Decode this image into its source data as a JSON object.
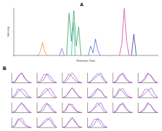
{
  "chart_data": [
    {
      "type": "line",
      "title": "A",
      "x_label": "Retention Time",
      "y_label": "Intensity",
      "xlim": [
        0,
        60
      ],
      "ylim": [
        0,
        1
      ],
      "xticks": [
        0,
        10,
        20,
        30,
        40,
        50,
        60
      ],
      "yticks": [
        0,
        0.5,
        1
      ],
      "tick_labels": false,
      "series": [
        {
          "color": "#f28a30",
          "x": [
            10,
            11,
            12,
            13,
            14
          ],
          "values": [
            0,
            0.08,
            0.28,
            0.06,
            0
          ]
        },
        {
          "color": "#9b59d0",
          "x": [
            19,
            20,
            21
          ],
          "values": [
            0,
            0.15,
            0
          ]
        },
        {
          "color": "#2ca05a",
          "x": [
            22,
            23,
            24,
            25,
            26,
            27,
            28
          ],
          "values": [
            0,
            0.9,
            0.3,
            0.95,
            0.2,
            0.6,
            0
          ]
        },
        {
          "color": "#3cb8b0",
          "x": [
            24,
            24.8,
            25.6
          ],
          "values": [
            0,
            0.7,
            0
          ]
        },
        {
          "color": "#4a6fd6",
          "x": [
            31,
            32,
            33,
            34,
            35,
            36
          ],
          "values": [
            0,
            0.2,
            0.05,
            0.35,
            0.1,
            0
          ]
        },
        {
          "color": "#d63aa8",
          "x": [
            44,
            45,
            46,
            47,
            48
          ],
          "values": [
            0,
            0.25,
            1,
            0.3,
            0
          ]
        },
        {
          "color": "#2a3a8c",
          "x": [
            49,
            50,
            51
          ],
          "values": [
            0,
            0.45,
            0
          ]
        }
      ]
    },
    {
      "type": "line",
      "title": "B",
      "x": [
        0,
        1,
        2,
        3,
        4,
        5,
        6
      ],
      "xlim": [
        0,
        6
      ],
      "ylim": [
        0,
        1
      ],
      "series": [
        {
          "color": "#4a5bd6",
          "values": [
            0,
            0.1,
            0.6,
            1,
            0.5,
            0.1,
            0
          ]
        },
        {
          "color": "#d63aa8",
          "values": [
            0,
            0.15,
            0.7,
            0.95,
            0.4,
            0.08,
            0
          ]
        }
      ]
    },
    {
      "type": "line",
      "x": [
        0,
        1,
        2,
        3,
        4,
        5,
        6
      ],
      "xlim": [
        0,
        6
      ],
      "ylim": [
        0,
        1
      ],
      "series": [
        {
          "color": "#4a5bd6",
          "values": [
            0,
            0.05,
            0.3,
            0.9,
            0.7,
            0.2,
            0
          ]
        },
        {
          "color": "#d63aa8",
          "values": [
            0,
            0.2,
            0.8,
            0.85,
            0.3,
            0.05,
            0
          ]
        }
      ]
    },
    {
      "type": "line",
      "x": [
        0,
        1,
        2,
        3,
        4,
        5,
        6
      ],
      "xlim": [
        0,
        6
      ],
      "ylim": [
        0,
        1
      ],
      "series": [
        {
          "color": "#4a5bd6",
          "values": [
            0,
            0.3,
            0.9,
            0.6,
            0.2,
            0.05,
            0
          ]
        },
        {
          "color": "#d63aa8",
          "values": [
            0,
            0.1,
            0.5,
            1,
            0.6,
            0.1,
            0
          ]
        }
      ]
    },
    {
      "type": "line",
      "x": [
        0,
        1,
        2,
        3,
        4,
        5,
        6
      ],
      "xlim": [
        0,
        6
      ],
      "ylim": [
        0,
        1
      ],
      "series": [
        {
          "color": "#4a5bd6",
          "values": [
            0,
            0.1,
            0.4,
            0.7,
            1,
            0.4,
            0
          ]
        },
        {
          "color": "#d63aa8",
          "values": [
            0,
            0.15,
            0.6,
            0.9,
            0.7,
            0.2,
            0
          ]
        }
      ]
    },
    {
      "type": "line",
      "x": [
        0,
        1,
        2,
        3,
        4,
        5,
        6
      ],
      "xlim": [
        0,
        6
      ],
      "ylim": [
        0,
        1
      ],
      "series": [
        {
          "color": "#4a5bd6",
          "values": [
            0,
            0.1,
            0.6,
            1,
            0.5,
            0.1,
            0
          ]
        },
        {
          "color": "#d63aa8",
          "values": [
            0,
            0.2,
            0.8,
            0.85,
            0.3,
            0.05,
            0
          ]
        }
      ]
    },
    {
      "type": "line",
      "x": [
        0,
        1,
        2,
        3,
        4,
        5,
        6
      ],
      "xlim": [
        0,
        6
      ],
      "ylim": [
        0,
        1
      ],
      "series": [
        {
          "color": "#4a5bd6",
          "values": [
            0,
            0.05,
            0.3,
            0.9,
            0.7,
            0.2,
            0
          ]
        },
        {
          "color": "#d63aa8",
          "values": [
            0,
            0.1,
            0.5,
            1,
            0.6,
            0.1,
            0
          ]
        }
      ]
    },
    {
      "type": "line",
      "x": [
        0,
        1,
        2,
        3,
        4,
        5,
        6
      ],
      "xlim": [
        0,
        6
      ],
      "ylim": [
        0,
        1
      ],
      "series": [
        {
          "color": "#4a5bd6",
          "values": [
            0,
            0.3,
            0.9,
            0.6,
            0.2,
            0.05,
            0
          ]
        },
        {
          "color": "#d63aa8",
          "values": [
            0,
            0.15,
            0.6,
            0.9,
            0.7,
            0.2,
            0
          ]
        }
      ]
    },
    {
      "type": "line",
      "x": [
        0,
        1,
        2,
        3,
        4,
        5,
        6
      ],
      "xlim": [
        0,
        6
      ],
      "ylim": [
        0,
        1
      ],
      "series": [
        {
          "color": "#4a5bd6",
          "values": [
            0,
            0.1,
            0.4,
            0.7,
            1,
            0.4,
            0
          ]
        },
        {
          "color": "#d63aa8",
          "values": [
            0,
            0.15,
            0.7,
            0.95,
            0.4,
            0.08,
            0
          ]
        }
      ]
    },
    {
      "type": "line",
      "x": [
        0,
        1,
        2,
        3,
        4,
        5,
        6
      ],
      "xlim": [
        0,
        6
      ],
      "ylim": [
        0,
        1
      ],
      "series": [
        {
          "color": "#4a5bd6",
          "values": [
            0,
            0.1,
            0.6,
            1,
            0.5,
            0.1,
            0
          ]
        },
        {
          "color": "#d63aa8",
          "values": [
            0,
            0.1,
            0.5,
            1,
            0.6,
            0.1,
            0
          ]
        }
      ]
    },
    {
      "type": "line",
      "x": [
        0,
        1,
        2,
        3,
        4,
        5,
        6
      ],
      "xlim": [
        0,
        6
      ],
      "ylim": [
        0,
        1
      ],
      "series": [
        {
          "color": "#4a5bd6",
          "values": [
            0,
            0.05,
            0.3,
            0.9,
            0.7,
            0.2,
            0
          ]
        },
        {
          "color": "#d63aa8",
          "values": [
            0,
            0.15,
            0.6,
            0.9,
            0.7,
            0.2,
            0
          ]
        }
      ]
    },
    {
      "type": "line",
      "x": [
        0,
        1,
        2,
        3,
        4,
        5,
        6
      ],
      "xlim": [
        0,
        6
      ],
      "ylim": [
        0,
        1
      ],
      "series": [
        {
          "color": "#4a5bd6",
          "values": [
            0,
            0.3,
            0.9,
            0.6,
            0.2,
            0.05,
            0
          ]
        },
        {
          "color": "#d63aa8",
          "values": [
            0,
            0.15,
            0.7,
            0.95,
            0.4,
            0.08,
            0
          ]
        }
      ]
    },
    {
      "type": "line",
      "x": [
        0,
        1,
        2,
        3,
        4,
        5,
        6
      ],
      "xlim": [
        0,
        6
      ],
      "ylim": [
        0,
        1
      ],
      "series": [
        {
          "color": "#4a5bd6",
          "values": [
            0,
            0.1,
            0.4,
            0.7,
            1,
            0.4,
            0
          ]
        },
        {
          "color": "#d63aa8",
          "values": [
            0,
            0.2,
            0.8,
            0.85,
            0.3,
            0.05,
            0
          ]
        }
      ]
    },
    {
      "type": "line",
      "x": [
        0,
        1,
        2,
        3,
        4,
        5,
        6
      ],
      "xlim": [
        0,
        6
      ],
      "ylim": [
        0,
        1
      ],
      "series": [
        {
          "color": "#4a5bd6",
          "values": [
            0,
            0.1,
            0.6,
            1,
            0.5,
            0.1,
            0
          ]
        },
        {
          "color": "#d63aa8",
          "values": [
            0,
            0.15,
            0.6,
            0.9,
            0.7,
            0.2,
            0
          ]
        }
      ]
    },
    {
      "type": "line",
      "x": [
        0,
        1,
        2,
        3,
        4,
        5,
        6
      ],
      "xlim": [
        0,
        6
      ],
      "ylim": [
        0,
        1
      ],
      "series": [
        {
          "color": "#4a5bd6",
          "values": [
            0,
            0.05,
            0.3,
            0.9,
            0.7,
            0.2,
            0
          ]
        },
        {
          "color": "#d63aa8",
          "values": [
            0,
            0.15,
            0.7,
            0.95,
            0.4,
            0.08,
            0
          ]
        }
      ]
    },
    {
      "type": "line",
      "x": [
        0,
        1,
        2,
        3,
        4,
        5,
        6
      ],
      "xlim": [
        0,
        6
      ],
      "ylim": [
        0,
        1
      ],
      "series": [
        {
          "color": "#4a5bd6",
          "values": [
            0,
            0.3,
            0.9,
            0.6,
            0.2,
            0.05,
            0
          ]
        },
        {
          "color": "#d63aa8",
          "values": [
            0,
            0.2,
            0.8,
            0.85,
            0.3,
            0.05,
            0
          ]
        }
      ]
    },
    {
      "type": "line",
      "x": [
        0,
        1,
        2,
        3,
        4,
        5,
        6
      ],
      "xlim": [
        0,
        6
      ],
      "ylim": [
        0,
        1
      ],
      "series": [
        {
          "color": "#4a5bd6",
          "values": [
            0,
            0.1,
            0.4,
            0.7,
            1,
            0.4,
            0
          ]
        },
        {
          "color": "#d63aa8",
          "values": [
            0,
            0.1,
            0.5,
            1,
            0.6,
            0.1,
            0
          ]
        }
      ]
    },
    {
      "type": "line",
      "x": [
        0,
        1,
        2,
        3,
        4,
        5,
        6
      ],
      "xlim": [
        0,
        6
      ],
      "ylim": [
        0,
        1
      ],
      "series": [
        {
          "color": "#4a5bd6",
          "values": [
            0,
            0.1,
            0.6,
            1,
            0.5,
            0.1,
            0
          ]
        },
        {
          "color": "#d63aa8",
          "values": [
            0,
            0.2,
            0.8,
            0.85,
            0.3,
            0.05,
            0
          ]
        }
      ]
    },
    {
      "type": "line",
      "x": [
        0,
        1,
        2,
        3,
        4,
        5,
        6
      ],
      "xlim": [
        0,
        6
      ],
      "ylim": [
        0,
        1
      ],
      "series": [
        {
          "color": "#4a5bd6",
          "values": [
            0,
            0.05,
            0.3,
            0.9,
            0.7,
            0.2,
            0
          ]
        },
        {
          "color": "#d63aa8",
          "values": [
            0,
            0.1,
            0.5,
            1,
            0.6,
            0.1,
            0
          ]
        }
      ]
    },
    {
      "type": "line",
      "x": [
        0,
        1,
        2,
        3,
        4,
        5,
        6
      ],
      "xlim": [
        0,
        6
      ],
      "ylim": [
        0,
        1
      ],
      "series": [
        {
          "color": "#4a5bd6",
          "values": [
            0,
            0.3,
            0.9,
            0.6,
            0.2,
            0.05,
            0
          ]
        },
        {
          "color": "#d63aa8",
          "values": [
            0,
            0.15,
            0.7,
            0.95,
            0.4,
            0.08,
            0
          ]
        }
      ]
    },
    {
      "type": "line",
      "x": [
        0,
        1,
        2,
        3,
        4,
        5,
        6
      ],
      "xlim": [
        0,
        6
      ],
      "ylim": [
        0,
        1
      ],
      "series": [
        {
          "color": "#4a5bd6",
          "values": [
            0,
            0.1,
            0.4,
            0.7,
            1,
            0.4,
            0
          ]
        },
        {
          "color": "#d63aa8",
          "values": [
            0,
            0.15,
            0.6,
            0.9,
            0.7,
            0.2,
            0
          ]
        }
      ]
    },
    {
      "type": "line",
      "x": [
        0,
        1,
        2,
        3,
        4,
        5,
        6
      ],
      "xlim": [
        0,
        6
      ],
      "ylim": [
        0,
        1
      ],
      "series": [
        {
          "color": "#4a5bd6",
          "values": [
            0,
            0.1,
            0.6,
            1,
            0.5,
            0.1,
            0
          ]
        },
        {
          "color": "#d63aa8",
          "values": [
            0,
            0.1,
            0.5,
            1,
            0.6,
            0.1,
            0
          ]
        }
      ]
    },
    {
      "type": "line",
      "x": [
        0,
        1,
        2,
        3,
        4,
        5,
        6
      ],
      "xlim": [
        0,
        6
      ],
      "ylim": [
        0,
        1
      ],
      "series": [
        {
          "color": "#4a5bd6",
          "values": [
            0,
            0.05,
            0.3,
            0.9,
            0.7,
            0.2,
            0
          ]
        },
        {
          "color": "#d63aa8",
          "values": [
            0,
            0.2,
            0.8,
            0.85,
            0.3,
            0.05,
            0
          ]
        }
      ]
    }
  ]
}
